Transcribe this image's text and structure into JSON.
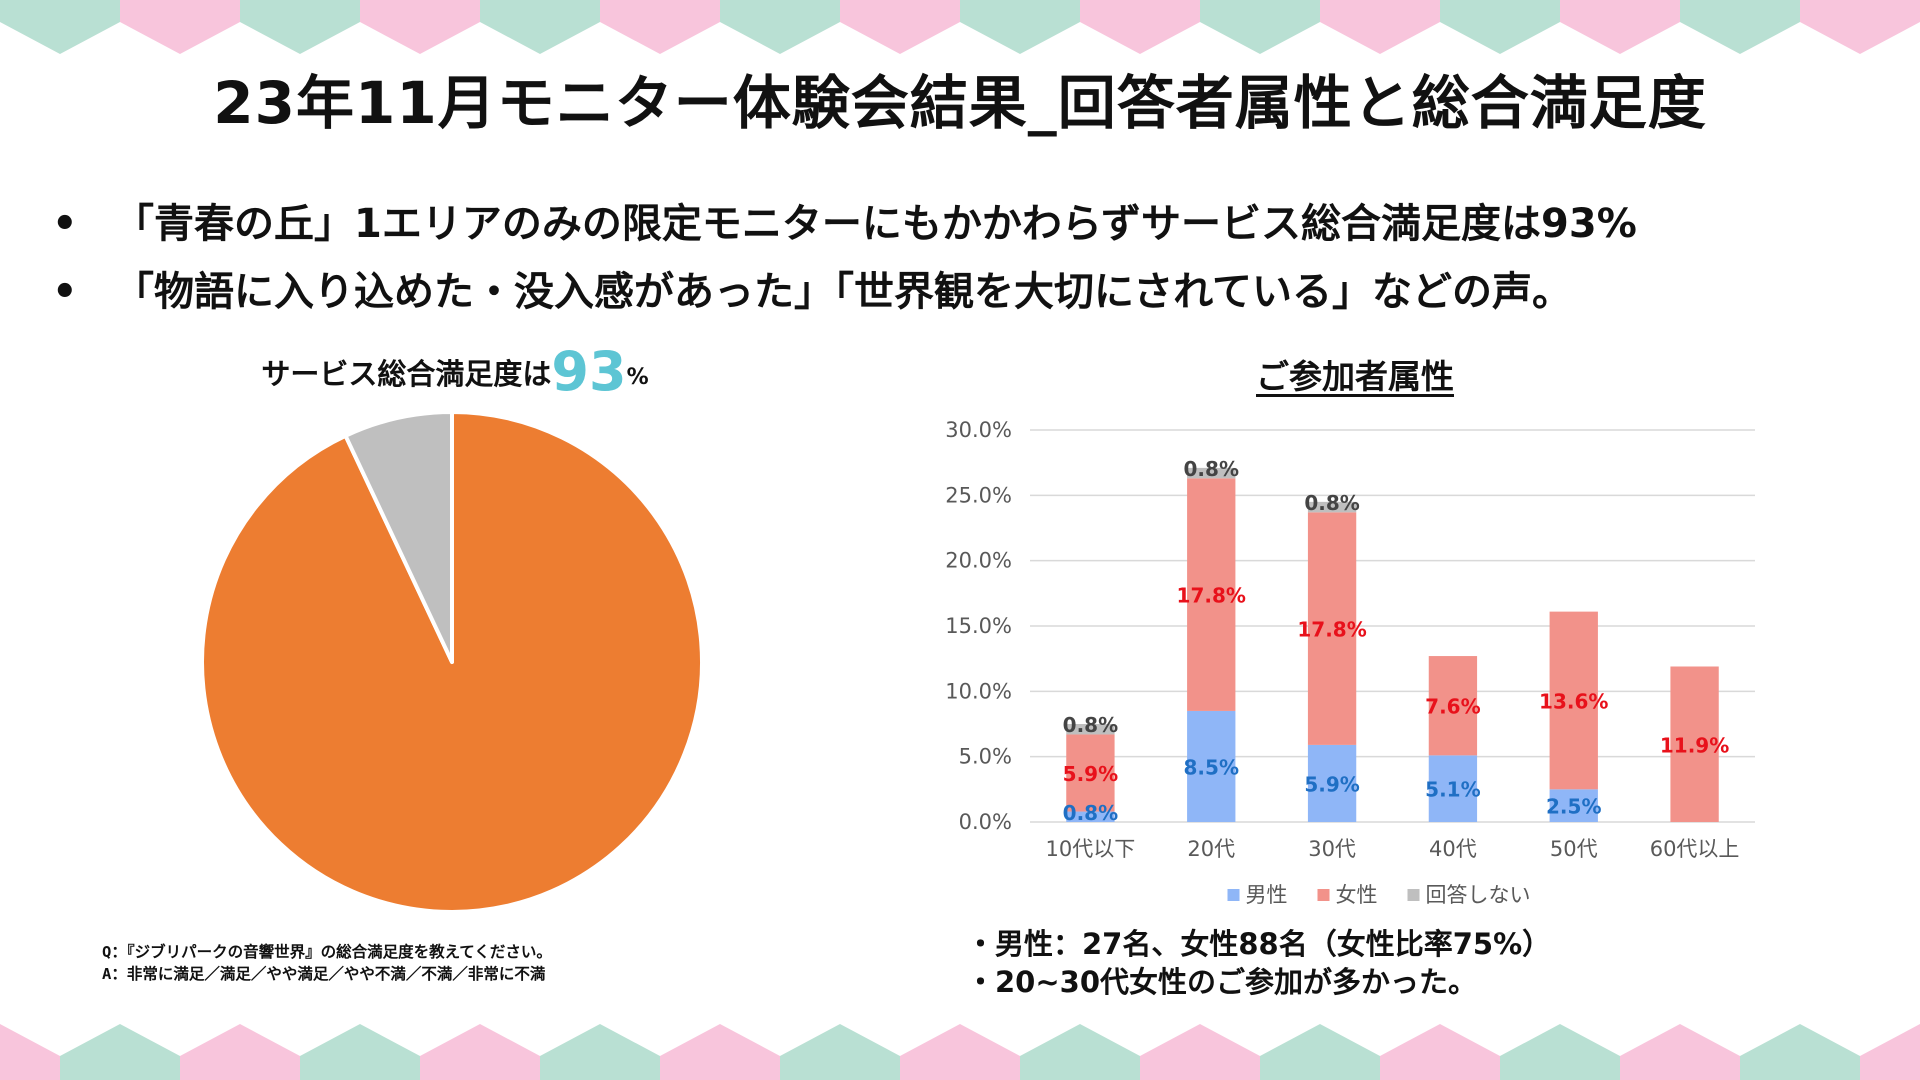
{
  "page": {
    "title": "23年11月モニター体験会結果_回答者属性と総合満足度",
    "bullets": [
      "「青春の丘」1エリアのみの限定モニターにもかかわらずサービス総合満足度は93%",
      "「物語に入り込めた・没入感があった」「世界観を大切にされている」などの声。"
    ],
    "bullet_marker": "•",
    "decoration_colors": [
      "#b9e0d3",
      "#f8c5dc"
    ]
  },
  "pie": {
    "title_prefix": "サービス総合満足度は",
    "title_big": "93",
    "title_suffix": "%",
    "question": "Q：『ジブリパークの音響世界』の総合満足度を教えてください。",
    "answers": "A：非常に満足／満足／やや満足／やや不満／不満／非常に不満"
  },
  "bar": {
    "title": "ご参加者属性",
    "notes": [
      "・男性：27名、女性88名（女性比率75%）",
      "・20~30代女性のご参加が多かった。"
    ]
  },
  "chart_data": [
    {
      "type": "pie",
      "slices": [
        {
          "value": 93,
          "color": "#ed7d31"
        },
        {
          "value": 7,
          "color": "#bfbfbf"
        }
      ]
    },
    {
      "type": "bar",
      "stacked": true,
      "categories": [
        "10代以下",
        "20代",
        "30代",
        "40代",
        "50代",
        "60代以上"
      ],
      "series": [
        {
          "name": "男性",
          "color": "#8fb6f7",
          "label_color": "#1f6fc4",
          "values": [
            0.8,
            8.5,
            5.9,
            5.1,
            2.5,
            0
          ]
        },
        {
          "name": "女性",
          "color": "#f2928a",
          "label_color": "#e8111b",
          "values": [
            5.9,
            17.8,
            17.8,
            7.6,
            13.6,
            11.9
          ]
        },
        {
          "name": "回答しない",
          "color": "#bfbfbf",
          "label_color": "#444444",
          "values": [
            0.8,
            0.8,
            0.8,
            0,
            0,
            0
          ]
        }
      ],
      "ylim": [
        0,
        30
      ],
      "yticks": [
        "0.0%",
        "5.0%",
        "10.0%",
        "15.0%",
        "20.0%",
        "25.0%",
        "30.0%"
      ],
      "grid": true,
      "legend": "bottom",
      "value_suffix": "%"
    }
  ]
}
